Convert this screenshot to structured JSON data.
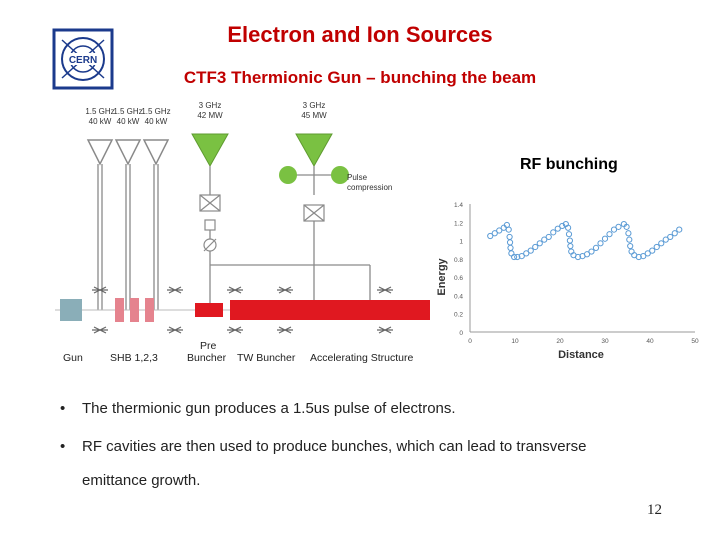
{
  "title": "Electron and Ion Sources",
  "subtitle": "CTF3 Thermionic Gun – bunching the beam",
  "logo_text": "CERN",
  "rf_label": "RF bunching",
  "diagram": {
    "klystrons": [
      {
        "freq": "1.5 GHz",
        "power": "40 kW"
      },
      {
        "freq": "1.5 GHz",
        "power": "40 kW"
      },
      {
        "freq": "1.5 GHz",
        "power": "40 kW"
      },
      {
        "freq": "3 GHz",
        "power": "42 MW"
      },
      {
        "freq": "3 GHz",
        "power": "45 MW"
      }
    ],
    "pulse_label_1": "Pulse",
    "pulse_label_2": "compression",
    "labels": {
      "gun": "Gun",
      "shb": "SHB 1,2,3",
      "pre": "Pre",
      "buncher": "Buncher",
      "tw": "TW Buncher",
      "acc": "Accelerating Structure"
    },
    "colors": {
      "green": "#7ac142",
      "red": "#e01820",
      "pink": "#e5838e",
      "gun": "#8aaeb8",
      "line": "#8a8a8a"
    }
  },
  "chart_data": {
    "type": "scatter",
    "xlabel": "Distance",
    "ylabel": "Energy",
    "xlim": [
      0,
      50
    ],
    "ylim": [
      0,
      1.4
    ],
    "xticks": [
      "0",
      "10",
      "20",
      "30",
      "40",
      "50"
    ],
    "yticks": [
      "0",
      "0.2",
      "0.4",
      "0.6",
      "0.8",
      "1",
      "1.2",
      "1.4"
    ],
    "grid": false,
    "points": [
      [
        4.5,
        1.05
      ],
      [
        5.5,
        1.08
      ],
      [
        6.5,
        1.11
      ],
      [
        7.5,
        1.14
      ],
      [
        8.2,
        1.17
      ],
      [
        8.6,
        1.12
      ],
      [
        8.8,
        1.04
      ],
      [
        8.9,
        0.98
      ],
      [
        9.0,
        0.92
      ],
      [
        9.2,
        0.86
      ],
      [
        9.8,
        0.82
      ],
      [
        10.5,
        0.82
      ],
      [
        11.5,
        0.83
      ],
      [
        12.5,
        0.86
      ],
      [
        13.5,
        0.89
      ],
      [
        14.5,
        0.93
      ],
      [
        15.5,
        0.97
      ],
      [
        16.5,
        1.01
      ],
      [
        17.5,
        1.04
      ],
      [
        18.5,
        1.09
      ],
      [
        19.5,
        1.13
      ],
      [
        20.5,
        1.16
      ],
      [
        21.3,
        1.18
      ],
      [
        21.8,
        1.14
      ],
      [
        22.0,
        1.07
      ],
      [
        22.2,
        1.0
      ],
      [
        22.3,
        0.94
      ],
      [
        22.5,
        0.88
      ],
      [
        23.0,
        0.84
      ],
      [
        24.0,
        0.82
      ],
      [
        25.0,
        0.83
      ],
      [
        26.0,
        0.85
      ],
      [
        27.0,
        0.88
      ],
      [
        28.0,
        0.92
      ],
      [
        29.0,
        0.97
      ],
      [
        30.0,
        1.02
      ],
      [
        31.0,
        1.07
      ],
      [
        32.0,
        1.12
      ],
      [
        33.0,
        1.15
      ],
      [
        34.2,
        1.18
      ],
      [
        34.8,
        1.15
      ],
      [
        35.2,
        1.08
      ],
      [
        35.4,
        1.01
      ],
      [
        35.6,
        0.94
      ],
      [
        35.9,
        0.88
      ],
      [
        36.5,
        0.84
      ],
      [
        37.5,
        0.82
      ],
      [
        38.5,
        0.83
      ],
      [
        39.5,
        0.86
      ],
      [
        40.5,
        0.89
      ],
      [
        41.5,
        0.93
      ],
      [
        42.5,
        0.97
      ],
      [
        43.5,
        1.01
      ],
      [
        44.5,
        1.04
      ],
      [
        45.5,
        1.08
      ],
      [
        46.5,
        1.12
      ]
    ]
  },
  "bullets": [
    {
      "mark": "•",
      "text": "The thermionic gun produces a 1.5us pulse of electrons."
    },
    {
      "mark": "•",
      "text": "RF cavities are then used to produce bunches, which can lead to transverse emittance growth."
    }
  ],
  "page_number": "12"
}
